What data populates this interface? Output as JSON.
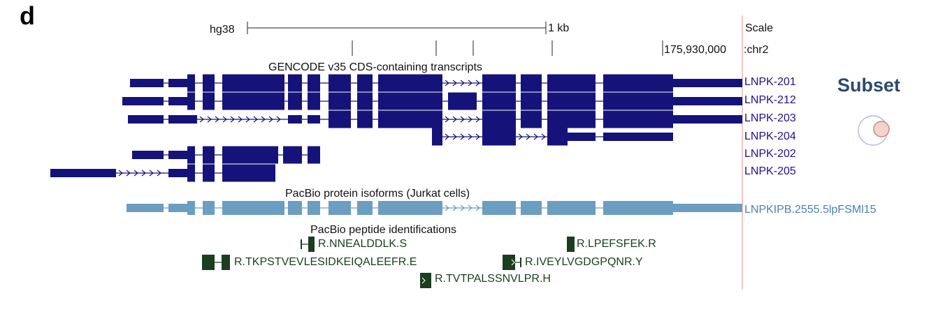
{
  "panel_label": "d",
  "scale": {
    "assembly": "hg38",
    "bar_label": "1 kb",
    "right_label": "Scale",
    "coordinate": "175,930,000",
    "chrom": ":chr2"
  },
  "tracks": {
    "gencode": {
      "title": "GENCODE v35 CDS-containing transcripts",
      "color": "#15137a",
      "transcripts": [
        "LNPK-201",
        "LNPK-212",
        "LNPK-203",
        "LNPK-204",
        "LNPK-202",
        "LNPK-205"
      ]
    },
    "pacbio_isoforms": {
      "title": "PacBio protein isoforms (Jurkat cells)",
      "color": "#6b9ec1",
      "label": "LNPKIPB.2555.5lpFSMl15"
    },
    "pacbio_peptides": {
      "title": "PacBio peptide identifications",
      "color": "#1a3e1f",
      "peptides": [
        "R.NNEALDDLK.S",
        "R.LPEFSFEK.R",
        "R.TKPSTVEVLESIDKEIQALEEFR.E",
        "R.IVEYLVGDGPQNR.Y",
        "R.TVTPALSSNVLPR.H"
      ]
    }
  },
  "subset": {
    "label": "Subset",
    "icon": "venn-subset-icon"
  }
}
